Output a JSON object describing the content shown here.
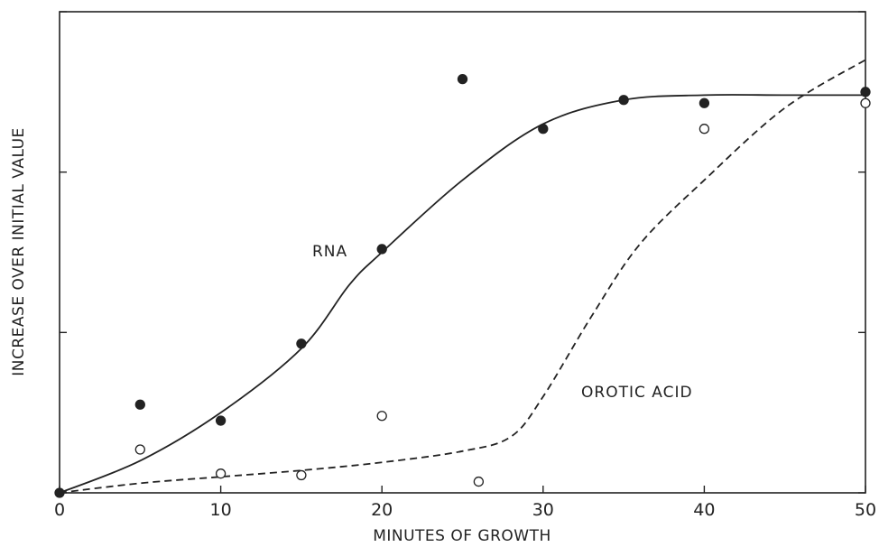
{
  "chart_data": {
    "type": "scatter",
    "xlabel": "MINUTES OF GROWTH",
    "ylabel": "INCREASE OVER INITIAL VALUE",
    "xlim": [
      0,
      50
    ],
    "ylim": [
      0,
      3
    ],
    "x_ticks": [
      0,
      10,
      20,
      30,
      40,
      50
    ],
    "y_ticks": [
      0,
      1,
      2,
      3
    ],
    "grid": false,
    "series": [
      {
        "name": "RNA",
        "marker": "filled-circle",
        "line_style": "solid",
        "points": [
          [
            0,
            0
          ],
          [
            5,
            0.55
          ],
          [
            10,
            0.45
          ],
          [
            15,
            0.93
          ],
          [
            20,
            1.52
          ],
          [
            25,
            2.58
          ],
          [
            30,
            2.27
          ],
          [
            35,
            2.45
          ],
          [
            40,
            2.43
          ],
          [
            50,
            2.5
          ]
        ],
        "curve": [
          [
            0,
            0
          ],
          [
            5,
            0.2
          ],
          [
            10,
            0.5
          ],
          [
            15,
            0.9
          ],
          [
            18,
            1.3
          ],
          [
            20,
            1.5
          ],
          [
            25,
            1.95
          ],
          [
            30,
            2.3
          ],
          [
            35,
            2.45
          ],
          [
            40,
            2.48
          ],
          [
            45,
            2.48
          ],
          [
            50,
            2.48
          ]
        ]
      },
      {
        "name": "OROTIC ACID",
        "marker": "open-circle",
        "line_style": "dashed",
        "points": [
          [
            5,
            0.27
          ],
          [
            10,
            0.12
          ],
          [
            15,
            0.11
          ],
          [
            20,
            0.48
          ],
          [
            26,
            0.07
          ],
          [
            40,
            2.27
          ],
          [
            50,
            2.43
          ]
        ],
        "curve": [
          [
            0,
            0
          ],
          [
            5,
            0.06
          ],
          [
            10,
            0.1
          ],
          [
            15,
            0.14
          ],
          [
            20,
            0.19
          ],
          [
            25,
            0.26
          ],
          [
            28,
            0.35
          ],
          [
            30,
            0.6
          ],
          [
            33,
            1.1
          ],
          [
            36,
            1.55
          ],
          [
            40,
            1.95
          ],
          [
            45,
            2.4
          ],
          [
            50,
            2.7
          ]
        ]
      }
    ],
    "colors": {
      "ink": "#222222",
      "background": "#ffffff"
    }
  }
}
